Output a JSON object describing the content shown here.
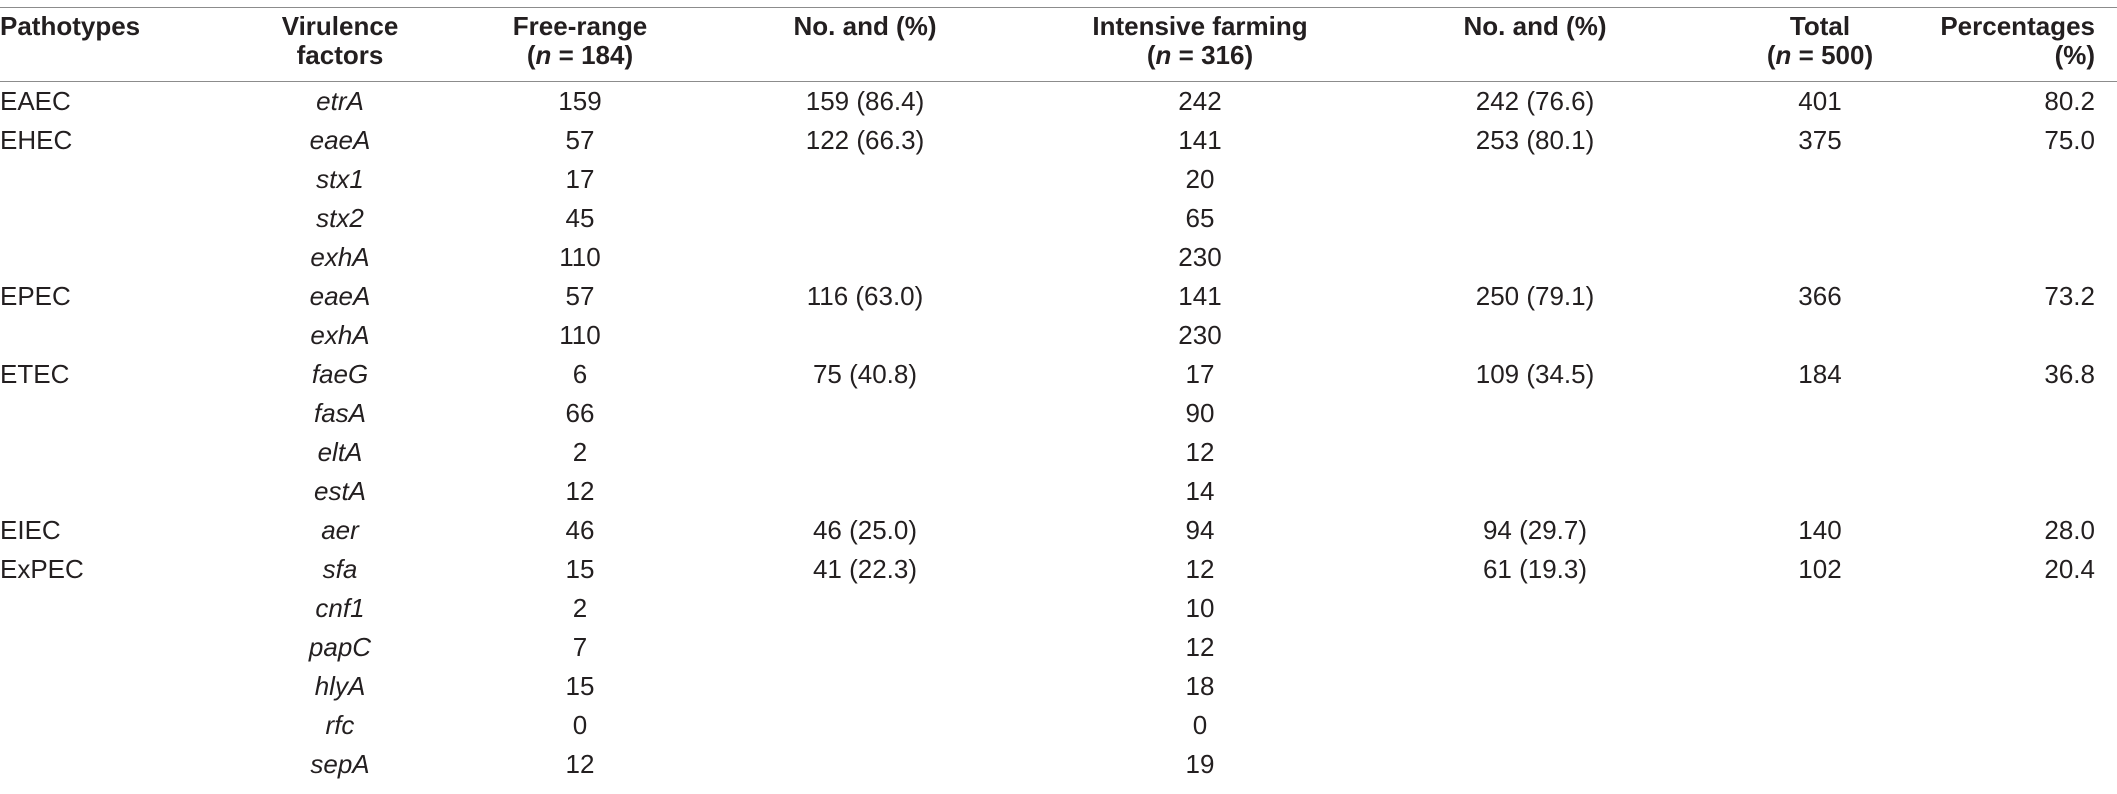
{
  "table": {
    "headers": {
      "pathotypes": "Pathotypes",
      "virulence_l1": "Virulence",
      "virulence_l2": "factors",
      "free_l1": "Free-range",
      "free_n_var": "n",
      "free_n_rest": " = 184)",
      "no_pct_1": "No. and (%)",
      "intensive_l1": "Intensive farming",
      "intensive_n_var": "n",
      "intensive_n_rest": " = 316)",
      "no_pct_2": "No. and (%)",
      "total_l1": "Total",
      "total_n_var": "n",
      "total_n_rest": " = 500)",
      "pct_l1": "Percentages",
      "pct_l2": "(%)"
    },
    "rows": [
      {
        "pathotype": "EAEC",
        "gene": "etrA",
        "free": "159",
        "free_pct": "159 (86.4)",
        "intensive": "242",
        "int_pct": "242 (76.6)",
        "total": "401",
        "percentage": "80.2"
      },
      {
        "pathotype": "EHEC",
        "gene": "eaeA",
        "free": "57",
        "free_pct": "122 (66.3)",
        "intensive": "141",
        "int_pct": "253 (80.1)",
        "total": "375",
        "percentage": "75.0"
      },
      {
        "pathotype": "",
        "gene": "stx1",
        "free": "17",
        "free_pct": "",
        "intensive": "20",
        "int_pct": "",
        "total": "",
        "percentage": ""
      },
      {
        "pathotype": "",
        "gene": "stx2",
        "free": "45",
        "free_pct": "",
        "intensive": "65",
        "int_pct": "",
        "total": "",
        "percentage": ""
      },
      {
        "pathotype": "",
        "gene": "exhA",
        "free": "110",
        "free_pct": "",
        "intensive": "230",
        "int_pct": "",
        "total": "",
        "percentage": ""
      },
      {
        "pathotype": "EPEC",
        "gene": "eaeA",
        "free": "57",
        "free_pct": "116 (63.0)",
        "intensive": "141",
        "int_pct": "250 (79.1)",
        "total": "366",
        "percentage": "73.2"
      },
      {
        "pathotype": "",
        "gene": "exhA",
        "free": "110",
        "free_pct": "",
        "intensive": "230",
        "int_pct": "",
        "total": "",
        "percentage": ""
      },
      {
        "pathotype": "ETEC",
        "gene": "faeG",
        "free": "6",
        "free_pct": "75 (40.8)",
        "intensive": "17",
        "int_pct": "109 (34.5)",
        "total": "184",
        "percentage": "36.8"
      },
      {
        "pathotype": "",
        "gene": "fasA",
        "free": "66",
        "free_pct": "",
        "intensive": "90",
        "int_pct": "",
        "total": "",
        "percentage": ""
      },
      {
        "pathotype": "",
        "gene": "eltA",
        "free": "2",
        "free_pct": "",
        "intensive": "12",
        "int_pct": "",
        "total": "",
        "percentage": ""
      },
      {
        "pathotype": "",
        "gene": "estA",
        "free": "12",
        "free_pct": "",
        "intensive": "14",
        "int_pct": "",
        "total": "",
        "percentage": ""
      },
      {
        "pathotype": "EIEC",
        "gene": "aer",
        "free": "46",
        "free_pct": "46 (25.0)",
        "intensive": "94",
        "int_pct": "94 (29.7)",
        "total": "140",
        "percentage": "28.0"
      },
      {
        "pathotype": "ExPEC",
        "gene": "sfa",
        "free": "15",
        "free_pct": "41 (22.3)",
        "intensive": "12",
        "int_pct": "61 (19.3)",
        "total": "102",
        "percentage": "20.4"
      },
      {
        "pathotype": "",
        "gene": "cnf1",
        "free": "2",
        "free_pct": "",
        "intensive": "10",
        "int_pct": "",
        "total": "",
        "percentage": ""
      },
      {
        "pathotype": "",
        "gene": "papC",
        "free": "7",
        "free_pct": "",
        "intensive": "12",
        "int_pct": "",
        "total": "",
        "percentage": ""
      },
      {
        "pathotype": "",
        "gene": "hlyA",
        "free": "15",
        "free_pct": "",
        "intensive": "18",
        "int_pct": "",
        "total": "",
        "percentage": ""
      },
      {
        "pathotype": "",
        "gene": "rfc",
        "free": "0",
        "free_pct": "",
        "intensive": "0",
        "int_pct": "",
        "total": "",
        "percentage": ""
      },
      {
        "pathotype": "",
        "gene": "sepA",
        "free": "12",
        "free_pct": "",
        "intensive": "19",
        "int_pct": "",
        "total": "",
        "percentage": ""
      }
    ]
  }
}
